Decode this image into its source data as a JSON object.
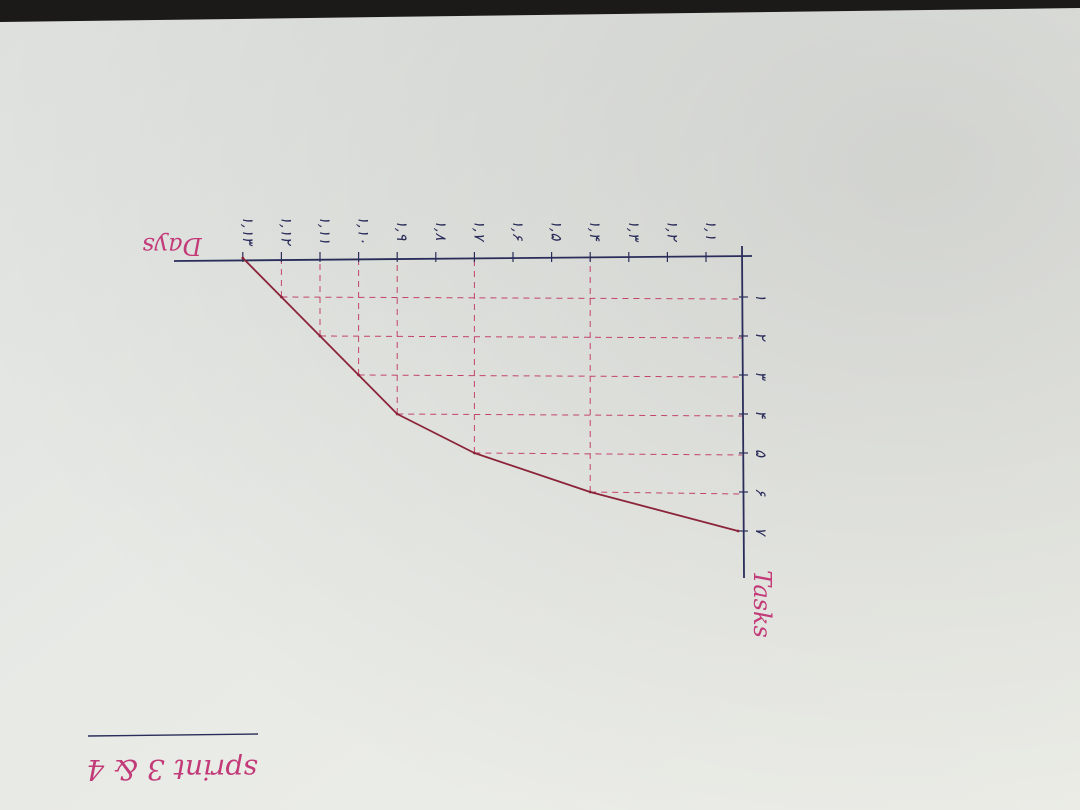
{
  "photo": {
    "subject": "hand-drawn burndown chart on paper (photographed upside down)",
    "ink_colors": {
      "axes": "#2a2d5a",
      "curve": "#8b2438",
      "guides": "#c2446a",
      "labels": "#c23a78"
    },
    "paper_color": "#e6e8e4"
  },
  "chart_data": {
    "type": "line",
    "title": "sprint 3 & 4",
    "xlabel": "Days",
    "ylabel": "Tasks",
    "x_tick_labels": [
      "۱,۱",
      "۱,۲",
      "۱,۳",
      "۱,۴",
      "۱,۵",
      "۱,۶",
      "۱,۷",
      "۱,۸",
      "۱,۹",
      "۱,۱۰",
      "۱,۱۱",
      "۱,۱۲",
      "۱,۱۳"
    ],
    "y_tick_labels": [
      "۱",
      "۲",
      "۳",
      "۴",
      "۵",
      "۶",
      "۷"
    ],
    "ylim": [
      0,
      7
    ],
    "series": [
      {
        "x_index": [
          3,
          6,
          8,
          9,
          10,
          11,
          12
        ],
        "values": [
          6,
          5,
          4,
          3,
          2,
          1,
          0
        ]
      }
    ]
  }
}
